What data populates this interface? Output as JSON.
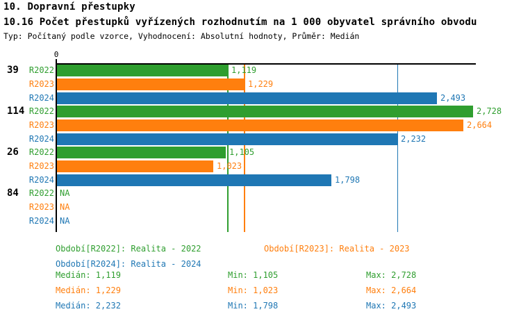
{
  "header": {
    "title": "10. Dopravní přestupky",
    "subtitle": "10.16 Počet přestupků vyřízených rozhodnutím na 1 000 obyvatel správního obvodu",
    "meta": "Typ: Počítaný podle vzorce, Vyhodnocení: Absolutní hodnoty, Průměr: Medián"
  },
  "colors": {
    "r2022": "#2f9e2f",
    "r2023": "#ff7f0e",
    "r2024": "#1f77b4",
    "axis": "#000000",
    "background": "#ffffff"
  },
  "chart_data": {
    "type": "bar",
    "orientation": "horizontal",
    "x_axis": {
      "zero_label": "0",
      "min": 0,
      "grid": false
    },
    "series": [
      {
        "id": "R2022",
        "label": "R2022",
        "color": "#2f9e2f",
        "median": 1119,
        "median_display": "1,119"
      },
      {
        "id": "R2023",
        "label": "R2023",
        "color": "#ff7f0e",
        "median": 1229,
        "median_display": "1,229"
      },
      {
        "id": "R2024",
        "label": "R2024",
        "color": "#1f77b4",
        "median": 2232,
        "median_display": "2,232"
      }
    ],
    "groups": [
      {
        "label": "39",
        "values": [
          1119,
          1229,
          2493
        ],
        "displays": [
          "1,119",
          "1,229",
          "2,493"
        ]
      },
      {
        "label": "114",
        "values": [
          2728,
          2664,
          2232
        ],
        "displays": [
          "2,728",
          "2,664",
          "2,232"
        ]
      },
      {
        "label": "26",
        "values": [
          1105,
          1023,
          1798
        ],
        "displays": [
          "1,105",
          "1,023",
          "1,798"
        ]
      },
      {
        "label": "84",
        "values": [
          null,
          null,
          null
        ],
        "displays": [
          "NA",
          "NA",
          "NA"
        ]
      }
    ],
    "median_lines_shown": true
  },
  "legend": {
    "items": [
      {
        "text": "Období[R2022]: Realita - 2022",
        "series": 0
      },
      {
        "text": "Období[R2023]: Realita - 2023",
        "series": 1
      },
      {
        "text": "Období[R2024]: Realita - 2024",
        "series": 2
      }
    ]
  },
  "stats": {
    "rows": [
      {
        "series": 0,
        "median": "Medián: 1,119",
        "min": "Min: 1,105",
        "max": "Max: 2,728"
      },
      {
        "series": 1,
        "median": "Medián: 1,229",
        "min": "Min: 1,023",
        "max": "Max: 2,664"
      },
      {
        "series": 2,
        "median": "Medián: 2,232",
        "min": "Min: 1,798",
        "max": "Max: 2,493"
      }
    ]
  }
}
